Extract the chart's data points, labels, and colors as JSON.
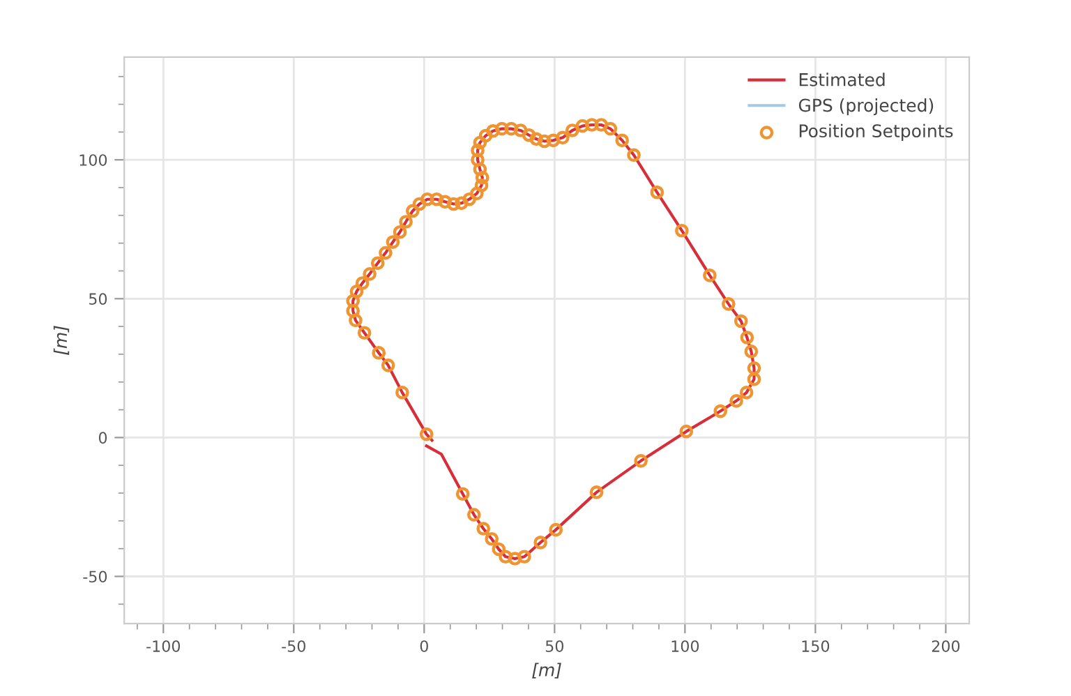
{
  "chart_data": {
    "type": "line",
    "xlabel": "[m]",
    "ylabel": "[m]",
    "xlim": [
      -115,
      209
    ],
    "ylim": [
      -67,
      137
    ],
    "xticks": [
      -100,
      -50,
      0,
      50,
      100,
      150,
      200
    ],
    "yticks": [
      -50,
      0,
      50,
      100
    ],
    "grid": true,
    "legend": "top right",
    "series": [
      {
        "name": "Estimated",
        "color": "#d62f3a",
        "line_style": "solid",
        "x": [
          0.9,
          6.6,
          14.8,
          19.1,
          22.7,
          25.9,
          28.6,
          31.2,
          34.8,
          38.4,
          44.6,
          50.5,
          66.1,
          83.1,
          100.5,
          113.6,
          119.7,
          123.6,
          126.5,
          126.5,
          125.4,
          123.8,
          121.5,
          116.7,
          109.5,
          98.8,
          89.3,
          80.4,
          75.9,
          71.4,
          67.9,
          64.3,
          60.7,
          56.8,
          53.1,
          49.5,
          46.1,
          43,
          40.2,
          37,
          33.4,
          29.8,
          26.4,
          23.6,
          21.4,
          20.5,
          20.5,
          21.4,
          22.3,
          22,
          20.2,
          17.3,
          14.3,
          11.3,
          8,
          4.8,
          1.2,
          -1.8,
          -4.4,
          -7,
          -9.3,
          -12,
          -14.8,
          -17.8,
          -20.9,
          -23.7,
          -25.9,
          -27.3,
          -27.3,
          -26.3,
          -22.9,
          -17.4,
          -13.8,
          -8.4,
          0.9,
          3
        ],
        "values": [
          -3,
          -6,
          -20.3,
          -27.8,
          -32.8,
          -36.5,
          -40.2,
          -42.9,
          -43.6,
          -42.9,
          -37.8,
          -33.2,
          -19.7,
          -8.4,
          2.2,
          9.5,
          13.2,
          16.2,
          21,
          25,
          31,
          36,
          41.9,
          48.1,
          58.4,
          74.5,
          88.3,
          101.7,
          107,
          111.2,
          112.6,
          112.6,
          112.2,
          110.6,
          108,
          107,
          106.7,
          107.5,
          108.9,
          110.6,
          111.2,
          111.2,
          110.4,
          108.7,
          106.2,
          103.4,
          100,
          96.6,
          93.6,
          90.8,
          87.9,
          85.8,
          84.4,
          84.1,
          84.9,
          85.8,
          85.8,
          84.1,
          81.6,
          77.7,
          74,
          70.4,
          66.5,
          62.8,
          58.9,
          55.6,
          52.6,
          49.2,
          45.6,
          42.2,
          37.7,
          30.5,
          26,
          16.2,
          1.2,
          -1
        ]
      },
      {
        "name": "GPS (projected)",
        "type": "line",
        "color": "#a6c8e6",
        "line_style": "solid"
      },
      {
        "name": "Position Setpoints",
        "type": "scatter",
        "color": "#ee9432",
        "marker": "circle",
        "x": [
          14.8,
          19.1,
          22.7,
          25.9,
          28.6,
          31.2,
          34.8,
          38.4,
          44.6,
          50.5,
          66.1,
          83.1,
          100.5,
          113.6,
          119.7,
          123.6,
          126.5,
          126.5,
          125.4,
          123.8,
          121.5,
          116.7,
          109.5,
          98.8,
          89.3,
          80.4,
          75.9,
          71.4,
          67.9,
          64.3,
          60.7,
          56.8,
          53.1,
          49.5,
          46.1,
          43,
          40.2,
          37,
          33.4,
          29.8,
          26.4,
          23.6,
          21.4,
          20.5,
          20.5,
          21.4,
          22.3,
          22,
          20.2,
          17.3,
          14.3,
          11.3,
          8,
          4.8,
          1.2,
          -1.8,
          -4.4,
          -7,
          -9.3,
          -12,
          -14.8,
          -17.8,
          -20.9,
          -23.7,
          -25.9,
          -27.3,
          -27.3,
          -26.3,
          -22.9,
          -17.4,
          -13.8,
          -8.4,
          0.9
        ],
        "values": [
          -20.3,
          -27.8,
          -32.8,
          -36.5,
          -40.2,
          -42.9,
          -43.6,
          -42.9,
          -37.8,
          -33.2,
          -19.7,
          -8.4,
          2.2,
          9.5,
          13.2,
          16.2,
          21,
          25,
          31,
          36,
          41.9,
          48.1,
          58.4,
          74.5,
          88.3,
          101.7,
          107,
          111.2,
          112.6,
          112.6,
          112.2,
          110.6,
          108,
          107,
          106.7,
          107.5,
          108.9,
          110.6,
          111.2,
          111.2,
          110.4,
          108.7,
          106.2,
          103.4,
          100,
          96.6,
          93.6,
          90.8,
          87.9,
          85.8,
          84.4,
          84.1,
          84.9,
          85.8,
          85.8,
          84.1,
          81.6,
          77.7,
          74,
          70.4,
          66.5,
          62.8,
          58.9,
          55.6,
          52.6,
          49.2,
          45.6,
          42.2,
          37.7,
          30.5,
          26,
          16.2,
          1.2
        ]
      }
    ]
  }
}
